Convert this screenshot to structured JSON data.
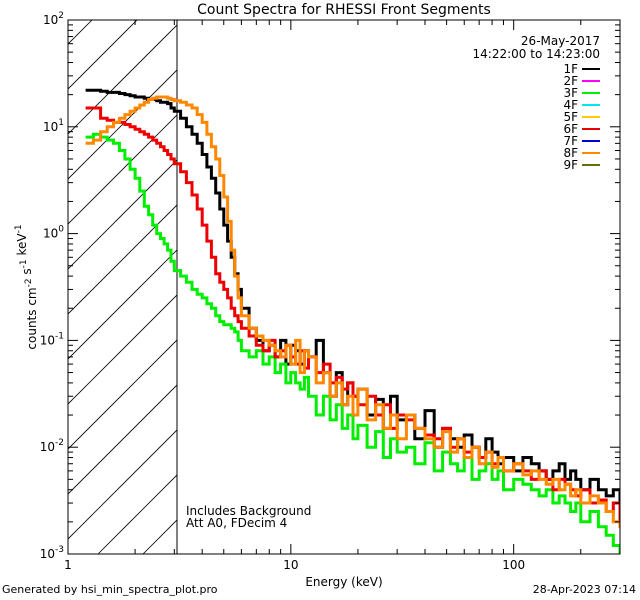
{
  "chart_data": {
    "type": "line",
    "title": "Count Spectra for RHESSI Front Segments",
    "xlabel": "Energy (keV)",
    "ylabel": "counts cm-2 s-1 keV-1",
    "xscale": "log",
    "yscale": "log",
    "xlim": [
      1,
      300
    ],
    "ylim": [
      0.001,
      100
    ],
    "x_tick_labels": [
      "1",
      "10",
      "100"
    ],
    "y_tick_labels": [
      {
        "base": "10",
        "exp": "-3"
      },
      {
        "base": "10",
        "exp": "-2"
      },
      {
        "base": "10",
        "exp": "-1"
      },
      {
        "base": "10",
        "exp": "0"
      },
      {
        "base": "10",
        "exp": "1"
      },
      {
        "base": "10",
        "exp": "2"
      }
    ],
    "shaded_region_max_keV": 3,
    "annotation": {
      "date": "26-May-2017",
      "time_range": "14:22:00 to 14:23:00"
    },
    "notes": [
      "Includes Background",
      "Att A0, FDecim 4"
    ],
    "legend": [
      {
        "name": "1F",
        "color": "#000000"
      },
      {
        "name": "2F",
        "color": "#ff00ff"
      },
      {
        "name": "3F",
        "color": "#00ee00"
      },
      {
        "name": "4F",
        "color": "#00e5ee"
      },
      {
        "name": "5F",
        "color": "#ffcc00"
      },
      {
        "name": "6F",
        "color": "#ee0000"
      },
      {
        "name": "7F",
        "color": "#0000cc"
      },
      {
        "name": "8F",
        "color": "#ff8800"
      },
      {
        "name": "9F",
        "color": "#6b6b00"
      }
    ],
    "series": [
      {
        "name": "1F",
        "color": "#000000",
        "x": [
          1.2,
          1.3,
          1.4,
          1.5,
          1.6,
          1.7,
          1.8,
          1.9,
          2.0,
          2.1,
          2.2,
          2.3,
          2.4,
          2.5,
          2.6,
          2.7,
          2.8,
          2.9,
          3.0,
          3.2,
          3.4,
          3.6,
          3.8,
          4.0,
          4.2,
          4.4,
          4.6,
          4.8,
          5.0,
          5.2,
          5.4,
          5.6,
          5.8,
          6.0,
          6.5,
          7,
          7.5,
          8,
          8.5,
          9,
          9.5,
          10,
          10.5,
          11,
          11.5,
          12,
          13,
          14,
          15,
          16,
          17,
          18,
          19,
          20,
          22,
          24,
          26,
          28,
          30,
          33,
          36,
          40,
          44,
          48,
          52,
          56,
          60,
          65,
          70,
          75,
          80,
          85,
          90,
          100,
          110,
          120,
          130,
          140,
          150,
          160,
          170,
          180,
          190,
          200,
          220,
          240,
          260,
          280,
          300
        ],
        "y": [
          22,
          22,
          21.5,
          21,
          21,
          20.5,
          20,
          19.5,
          19,
          19,
          18.5,
          18,
          18,
          17.5,
          17,
          17,
          16.5,
          15,
          14,
          12,
          10,
          8.5,
          7,
          5.5,
          4.2,
          3.3,
          2.4,
          1.7,
          1.2,
          0.85,
          0.6,
          0.42,
          0.3,
          0.2,
          0.13,
          0.1,
          0.08,
          0.09,
          0.07,
          0.1,
          0.06,
          0.09,
          0.08,
          0.06,
          0.08,
          0.07,
          0.1,
          0.05,
          0.03,
          0.05,
          0.025,
          0.04,
          0.03,
          0.035,
          0.02,
          0.028,
          0.015,
          0.03,
          0.018,
          0.02,
          0.012,
          0.022,
          0.01,
          0.015,
          0.012,
          0.01,
          0.013,
          0.01,
          0.008,
          0.012,
          0.009,
          0.007,
          0.008,
          0.006,
          0.008,
          0.007,
          0.006,
          0.005,
          0.006,
          0.007,
          0.005,
          0.006,
          0.005,
          0.004,
          0.005,
          0.004,
          0.0035,
          0.004,
          0.003
        ]
      },
      {
        "name": "3F",
        "color": "#00ee00",
        "x": [
          1.2,
          1.3,
          1.4,
          1.5,
          1.6,
          1.7,
          1.8,
          1.9,
          2.0,
          2.1,
          2.2,
          2.3,
          2.4,
          2.5,
          2.6,
          2.7,
          2.8,
          2.9,
          3.0,
          3.2,
          3.4,
          3.6,
          3.8,
          4.0,
          4.2,
          4.4,
          4.6,
          4.8,
          5.0,
          5.2,
          5.4,
          5.6,
          5.8,
          6.0,
          6.5,
          7,
          7.5,
          8,
          8.5,
          9,
          9.5,
          10,
          10.5,
          11,
          11.5,
          12,
          13,
          14,
          15,
          16,
          17,
          18,
          19,
          20,
          22,
          24,
          26,
          28,
          30,
          33,
          36,
          40,
          44,
          48,
          52,
          56,
          60,
          65,
          70,
          75,
          80,
          85,
          90,
          100,
          110,
          120,
          130,
          140,
          150,
          160,
          170,
          180,
          190,
          200,
          220,
          240,
          260,
          280,
          300
        ],
        "y": [
          8,
          8.5,
          8,
          7.5,
          7,
          6,
          5,
          4,
          3.3,
          2.5,
          1.8,
          1.5,
          1.2,
          1.0,
          0.9,
          0.8,
          0.7,
          0.55,
          0.45,
          0.4,
          0.35,
          0.3,
          0.27,
          0.25,
          0.22,
          0.2,
          0.17,
          0.15,
          0.14,
          0.14,
          0.13,
          0.12,
          0.1,
          0.08,
          0.07,
          0.08,
          0.06,
          0.07,
          0.05,
          0.06,
          0.04,
          0.05,
          0.04,
          0.035,
          0.045,
          0.03,
          0.02,
          0.03,
          0.018,
          0.025,
          0.015,
          0.02,
          0.012,
          0.016,
          0.01,
          0.014,
          0.008,
          0.012,
          0.009,
          0.01,
          0.007,
          0.011,
          0.006,
          0.009,
          0.007,
          0.006,
          0.008,
          0.005,
          0.006,
          0.007,
          0.005,
          0.006,
          0.004,
          0.005,
          0.0045,
          0.004,
          0.0035,
          0.004,
          0.003,
          0.0035,
          0.003,
          0.0025,
          0.003,
          0.002,
          0.0025,
          0.0018,
          0.0015,
          0.0012,
          0.001
        ]
      },
      {
        "name": "6F",
        "color": "#ee0000",
        "x": [
          1.2,
          1.3,
          1.4,
          1.5,
          1.6,
          1.7,
          1.8,
          1.9,
          2.0,
          2.1,
          2.2,
          2.3,
          2.4,
          2.5,
          2.6,
          2.7,
          2.8,
          2.9,
          3.0,
          3.2,
          3.4,
          3.6,
          3.8,
          4.0,
          4.2,
          4.4,
          4.6,
          4.8,
          5.0,
          5.2,
          5.4,
          5.6,
          5.8,
          6.0,
          6.5,
          7,
          7.5,
          8,
          8.5,
          9,
          9.5,
          10,
          10.5,
          11,
          11.5,
          12,
          13,
          14,
          15,
          16,
          17,
          18,
          19,
          20,
          22,
          24,
          26,
          28,
          30,
          33,
          36,
          40,
          44,
          48,
          52,
          56,
          60,
          65,
          70,
          75,
          80,
          85,
          90,
          100,
          110,
          120,
          130,
          140,
          150,
          160,
          170,
          180,
          190,
          200,
          220,
          240,
          260,
          280,
          300
        ],
        "y": [
          15,
          15,
          12,
          11.5,
          11,
          11,
          10.5,
          10,
          9.5,
          9,
          8.5,
          8,
          7.5,
          7,
          6.5,
          6,
          5.5,
          5,
          4.5,
          3.8,
          3,
          2.3,
          1.7,
          1.2,
          0.85,
          0.6,
          0.42,
          0.35,
          0.3,
          0.25,
          0.2,
          0.17,
          0.15,
          0.13,
          0.11,
          0.09,
          0.08,
          0.1,
          0.07,
          0.08,
          0.09,
          0.07,
          0.06,
          0.08,
          0.055,
          0.07,
          0.05,
          0.06,
          0.04,
          0.045,
          0.035,
          0.04,
          0.03,
          0.025,
          0.03,
          0.02,
          0.025,
          0.015,
          0.02,
          0.018,
          0.015,
          0.013,
          0.012,
          0.015,
          0.01,
          0.012,
          0.009,
          0.01,
          0.008,
          0.009,
          0.007,
          0.008,
          0.006,
          0.007,
          0.006,
          0.005,
          0.006,
          0.005,
          0.004,
          0.005,
          0.0045,
          0.004,
          0.0035,
          0.004,
          0.003,
          0.0032,
          0.0025,
          0.003,
          0.002
        ]
      },
      {
        "name": "8F",
        "color": "#ff8800",
        "x": [
          1.2,
          1.3,
          1.4,
          1.5,
          1.6,
          1.7,
          1.8,
          1.9,
          2.0,
          2.1,
          2.2,
          2.3,
          2.4,
          2.5,
          2.6,
          2.7,
          2.8,
          2.9,
          3.0,
          3.2,
          3.4,
          3.6,
          3.8,
          4.0,
          4.2,
          4.4,
          4.6,
          4.8,
          5.0,
          5.2,
          5.4,
          5.6,
          5.8,
          6.0,
          6.5,
          7,
          7.5,
          8,
          8.5,
          9,
          9.5,
          10,
          10.5,
          11,
          11.5,
          12,
          13,
          14,
          15,
          16,
          17,
          18,
          19,
          20,
          22,
          24,
          26,
          28,
          30,
          33,
          36,
          40,
          44,
          48,
          52,
          56,
          60,
          65,
          70,
          75,
          80,
          85,
          90,
          100,
          110,
          120,
          130,
          140,
          150,
          160,
          170,
          180,
          190,
          200,
          220,
          240,
          260,
          280,
          300
        ],
        "y": [
          7,
          7.5,
          9,
          10,
          11,
          12,
          13,
          14,
          15,
          16,
          17,
          18,
          18.5,
          19,
          19,
          19,
          18.5,
          18,
          17.5,
          17,
          16,
          15,
          13,
          11,
          8.5,
          6.5,
          5,
          3.5,
          2.2,
          1.3,
          0.7,
          0.4,
          0.25,
          0.17,
          0.13,
          0.11,
          0.1,
          0.09,
          0.08,
          0.07,
          0.09,
          0.06,
          0.1,
          0.05,
          0.08,
          0.07,
          0.04,
          0.05,
          0.03,
          0.04,
          0.025,
          0.03,
          0.02,
          0.035,
          0.018,
          0.025,
          0.015,
          0.02,
          0.012,
          0.02,
          0.015,
          0.012,
          0.01,
          0.014,
          0.009,
          0.012,
          0.008,
          0.01,
          0.007,
          0.009,
          0.0065,
          0.008,
          0.006,
          0.007,
          0.0055,
          0.006,
          0.005,
          0.0045,
          0.005,
          0.004,
          0.0045,
          0.0035,
          0.004,
          0.003,
          0.0035,
          0.003,
          0.0025,
          0.002,
          0.0018
        ]
      }
    ]
  },
  "footer": {
    "generated_by": "Generated by hsi_min_spectra_plot.pro",
    "timestamp": "28-Apr-2023 07:14"
  }
}
